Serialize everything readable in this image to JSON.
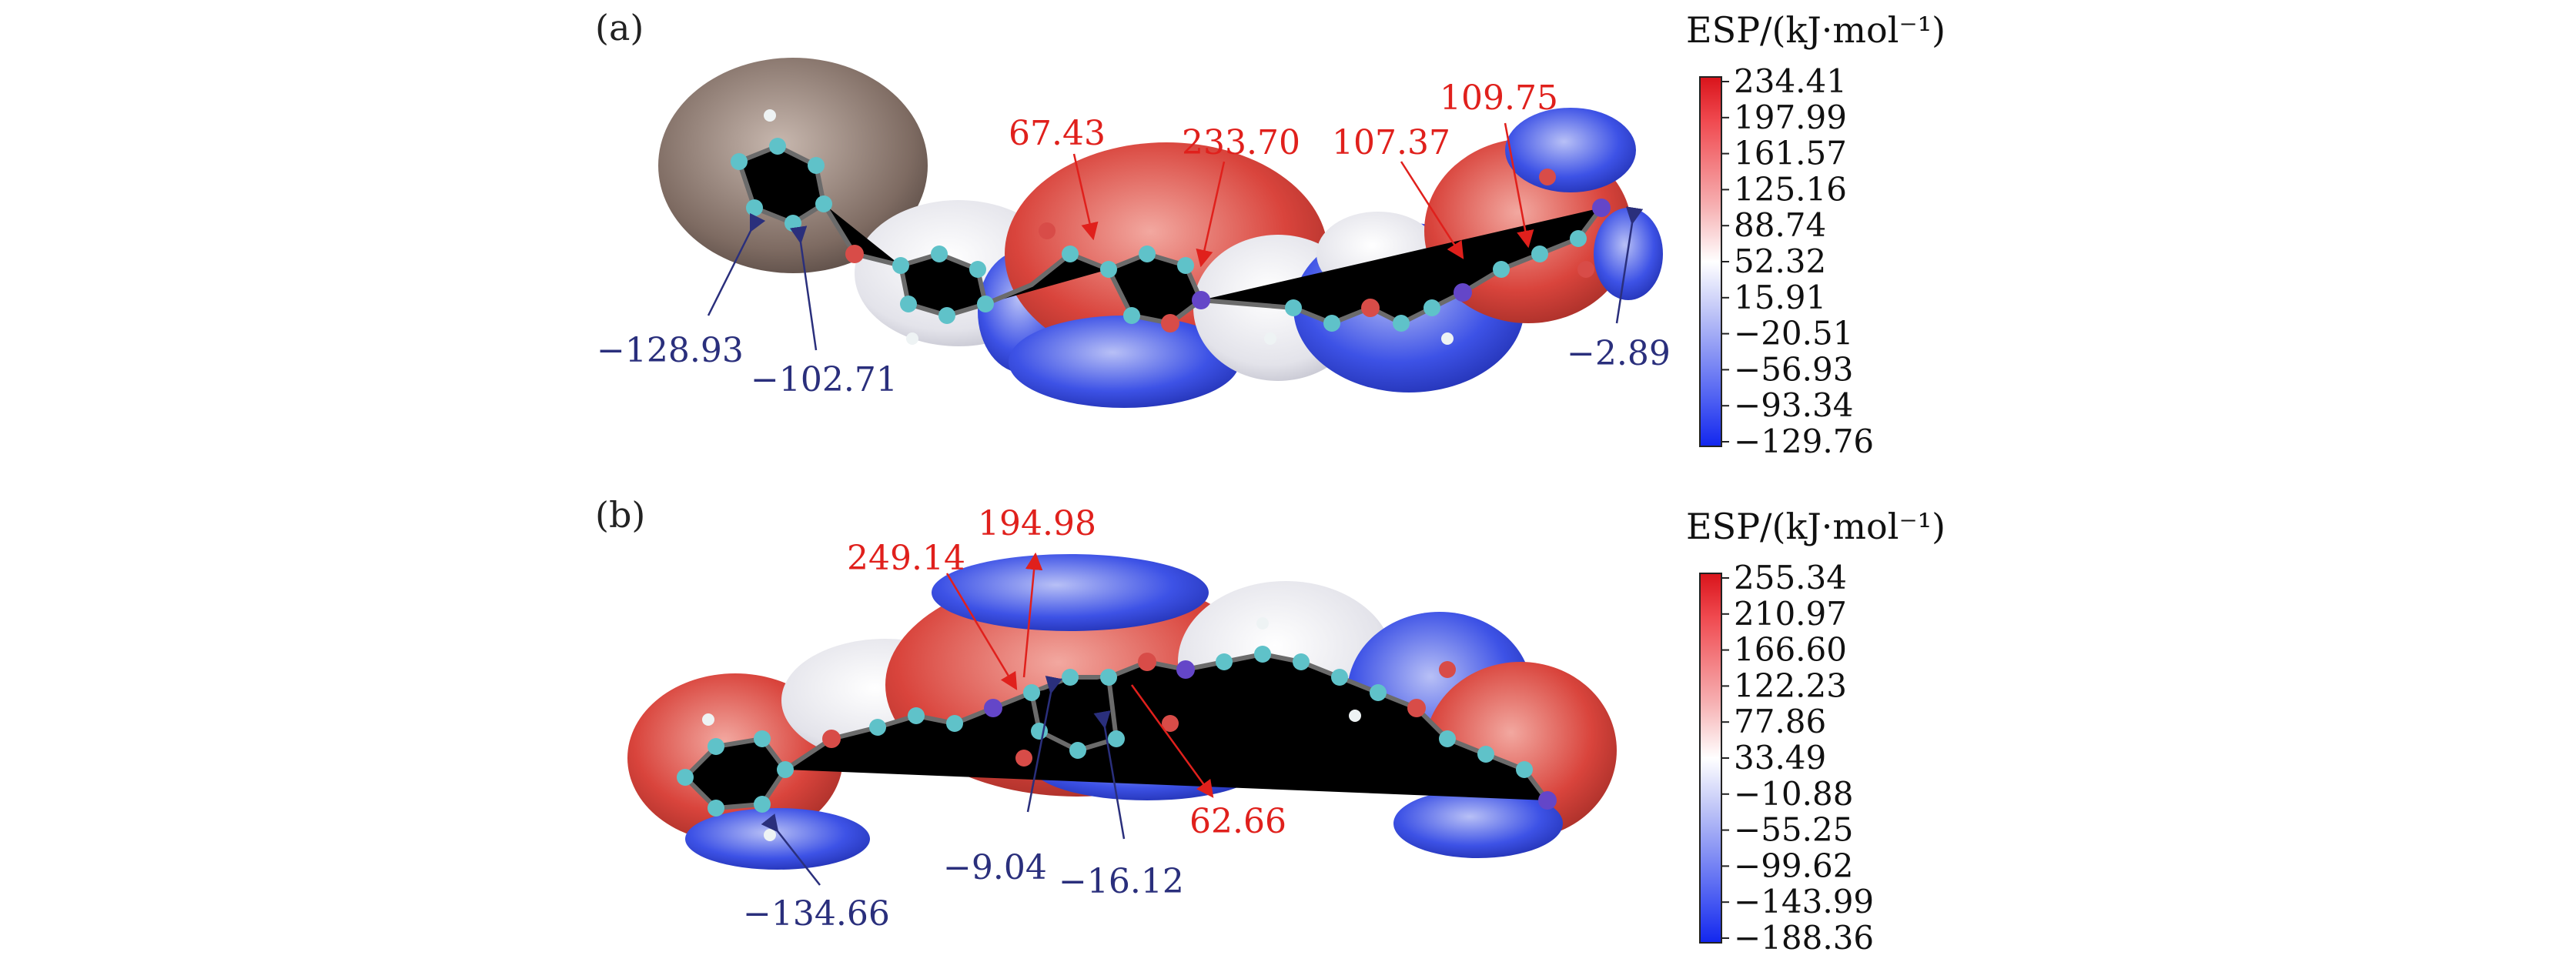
{
  "panels": [
    {
      "label": "(a)",
      "annotations": [
        {
          "text": "67.43",
          "kind": "positive"
        },
        {
          "text": "233.70",
          "kind": "positive"
        },
        {
          "text": "107.37",
          "kind": "positive"
        },
        {
          "text": "109.75",
          "kind": "positive"
        },
        {
          "text": "−128.93",
          "kind": "negative"
        },
        {
          "text": "−102.71",
          "kind": "negative"
        },
        {
          "text": "−2.89",
          "kind": "negative"
        }
      ],
      "legend": {
        "title": "ESP/(kJ·mol⁻¹)",
        "ticks": [
          "234.41",
          "197.99",
          "161.57",
          "125.16",
          "88.74",
          "52.32",
          "15.91",
          "−20.51",
          "−56.93",
          "−93.34",
          "−129.76"
        ]
      }
    },
    {
      "label": "(b)",
      "annotations": [
        {
          "text": "249.14",
          "kind": "positive"
        },
        {
          "text": "194.98",
          "kind": "positive"
        },
        {
          "text": "62.66",
          "kind": "positive"
        },
        {
          "text": "−9.04",
          "kind": "negative"
        },
        {
          "text": "−16.12",
          "kind": "negative"
        },
        {
          "text": "−134.66",
          "kind": "negative"
        }
      ],
      "legend": {
        "title": "ESP/(kJ·mol⁻¹)",
        "ticks": [
          "255.34",
          "210.97",
          "166.60",
          "122.23",
          "77.86",
          "33.49",
          "−10.88",
          "−55.25",
          "−99.62",
          "−143.99",
          "−188.36"
        ]
      }
    }
  ],
  "colors": {
    "positive_label": "#e0201c",
    "negative_label": "#2a2f7c",
    "scale_top": "#e8151b",
    "scale_mid": "#ffffff",
    "scale_bottom": "#1a2cf0"
  }
}
